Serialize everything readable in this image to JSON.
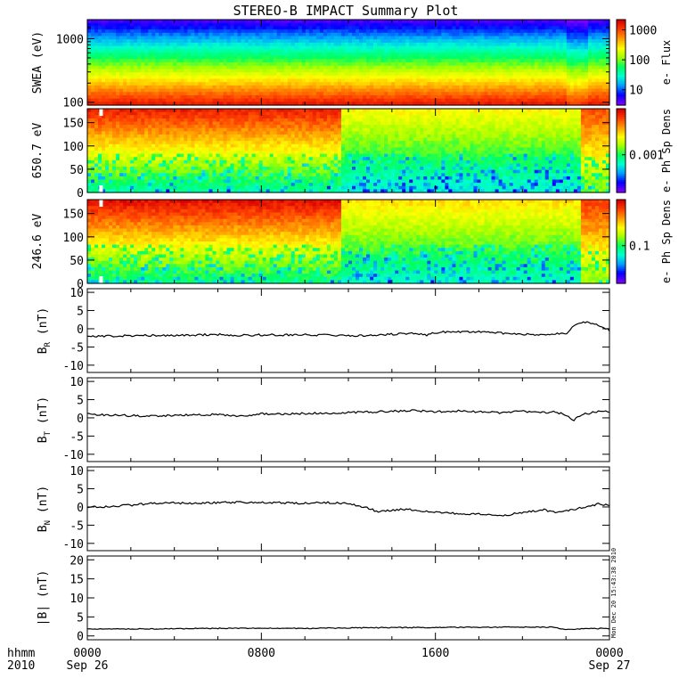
{
  "title": "STEREO-B IMPACT Summary Plot",
  "timestamp": "Mon Dec 20 15:43:38 2010",
  "x_axis": {
    "corner_top": "hhmm",
    "corner_bottom": "2010",
    "ticks": [
      {
        "hour": 0,
        "top": "0000",
        "bottom": "Sep 26"
      },
      {
        "hour": 8,
        "top": "0800",
        "bottom": ""
      },
      {
        "hour": 16,
        "top": "1600",
        "bottom": ""
      },
      {
        "hour": 24,
        "top": "0000",
        "bottom": "Sep 27"
      }
    ]
  },
  "colors": {
    "spectrogram_scale": [
      "#7a00ff",
      "#0000ff",
      "#00a0ff",
      "#00ffd0",
      "#00ff60",
      "#a0ff00",
      "#ffff00",
      "#ffa000",
      "#ff4000",
      "#d80000"
    ],
    "line": "#000000",
    "frame": "#000000"
  },
  "chart_data": [
    {
      "type": "heatmap",
      "ylabel": "SWEA (eV)",
      "ylog": true,
      "ylim": [
        90,
        2000
      ],
      "yticks": [
        "1000",
        "100"
      ],
      "colorbar": {
        "label": "e- Flux",
        "ticks": [
          "1000",
          "100",
          "10"
        ]
      },
      "description_of_levels": "energy rows colour-coded from red (~100 eV) through yellow and green to blue (~2000 eV)",
      "rows": [
        {
          "energy": 100,
          "level": 0.93
        },
        {
          "energy": 150,
          "level": 0.82
        },
        {
          "energy": 220,
          "level": 0.72
        },
        {
          "energy": 320,
          "level": 0.62
        },
        {
          "energy": 450,
          "level": 0.5
        },
        {
          "energy": 650,
          "level": 0.38
        },
        {
          "energy": 950,
          "level": 0.27
        },
        {
          "energy": 1400,
          "level": 0.12
        },
        {
          "energy": 2000,
          "level": 0.05
        }
      ]
    },
    {
      "type": "heatmap",
      "ylabel": "650.7 eV",
      "ylim": [
        0,
        180
      ],
      "yticks": [
        "0",
        "50",
        "100",
        "150"
      ],
      "colorbar": {
        "label": "e- Ph Sp Dens",
        "ticks": [
          "0.001"
        ]
      },
      "regime_change_hour": 11.6
    },
    {
      "type": "heatmap",
      "ylabel": "246.6 eV",
      "ylim": [
        0,
        180
      ],
      "yticks": [
        "0",
        "50",
        "100",
        "150"
      ],
      "colorbar": {
        "label": "e- Ph Sp Dens",
        "ticks": [
          "0.1"
        ]
      },
      "regime_change_hour": 11.6
    },
    {
      "type": "line",
      "ylabel": "B",
      "ysub": "R",
      "yunit": "(nT)",
      "ylim": [
        -12,
        11
      ],
      "yticks": [
        "10",
        "5",
        "0",
        "-5",
        "-10"
      ],
      "x_hours": [
        0,
        1,
        2,
        3,
        4,
        5,
        6,
        7,
        8,
        9,
        10,
        11,
        12,
        13,
        14,
        15,
        15.6,
        16,
        17,
        18,
        19,
        20,
        21,
        21.5,
        22,
        22.3,
        22.8,
        23.3,
        23.7,
        24
      ],
      "values": [
        -2,
        -2,
        -1.9,
        -1.8,
        -1.8,
        -1.7,
        -1.6,
        -1.8,
        -1.7,
        -1.7,
        -1.6,
        -1.8,
        -1.9,
        -1.8,
        -1.5,
        -1.2,
        -1.8,
        -1.0,
        -0.8,
        -0.8,
        -1.2,
        -1.5,
        -1.8,
        -1.4,
        -1.5,
        0.5,
        2.0,
        1.2,
        0.6,
        -0.5
      ]
    },
    {
      "type": "line",
      "ylabel": "B",
      "ysub": "T",
      "yunit": "(nT)",
      "ylim": [
        -12,
        11
      ],
      "yticks": [
        "10",
        "5",
        "0",
        "-5",
        "-10"
      ],
      "x_hours": [
        0,
        1,
        2,
        3,
        4,
        5,
        6,
        7,
        8,
        9,
        10,
        11,
        12,
        13,
        14,
        15,
        16,
        17,
        18,
        19,
        20,
        21,
        21.5,
        22,
        22.3,
        22.8,
        23.3,
        23.7,
        24
      ],
      "values": [
        1.0,
        0.8,
        0.6,
        0.5,
        0.7,
        0.8,
        0.9,
        0.5,
        1.1,
        1.0,
        1.2,
        1.3,
        1.5,
        1.6,
        1.8,
        2.0,
        1.7,
        1.9,
        1.6,
        1.4,
        1.8,
        1.5,
        1.6,
        0.8,
        -0.8,
        1.0,
        1.5,
        2.0,
        1.6
      ]
    },
    {
      "type": "line",
      "ylabel": "B",
      "ysub": "N",
      "yunit": "(nT)",
      "ylim": [
        -12,
        11
      ],
      "yticks": [
        "10",
        "5",
        "0",
        "-5",
        "-10"
      ],
      "x_hours": [
        0,
        1,
        2,
        3,
        4,
        5,
        6,
        7,
        8,
        9,
        10,
        11,
        12,
        13,
        13.3,
        14,
        14.5,
        15,
        15.5,
        16,
        17,
        18,
        19,
        20,
        21,
        21.5,
        22,
        22.5,
        23,
        23.5,
        24
      ],
      "values": [
        0,
        0.1,
        0.5,
        1.0,
        1.1,
        1.0,
        1.2,
        1.3,
        1.2,
        1.1,
        1.0,
        1.2,
        1.0,
        -0.5,
        -1.2,
        -1.0,
        -0.6,
        -0.8,
        -1.2,
        -1.5,
        -1.8,
        -2.0,
        -2.5,
        -1.5,
        -0.8,
        -1.5,
        -1.0,
        -0.5,
        0.2,
        0.8,
        0.4
      ]
    },
    {
      "type": "line",
      "ylabel": "|B|",
      "yunit": "(nT)",
      "ylim": [
        -1,
        21
      ],
      "yticks": [
        "20",
        "15",
        "10",
        "5",
        "0"
      ],
      "x_hours": [
        0,
        2,
        4,
        6,
        8,
        10,
        12,
        14,
        16,
        18,
        20,
        21.5,
        22,
        23,
        24
      ],
      "values": [
        1.8,
        1.8,
        1.9,
        2.0,
        2.0,
        2.0,
        2.1,
        2.2,
        2.2,
        2.3,
        2.3,
        2.3,
        1.6,
        2.0,
        1.9
      ]
    }
  ]
}
